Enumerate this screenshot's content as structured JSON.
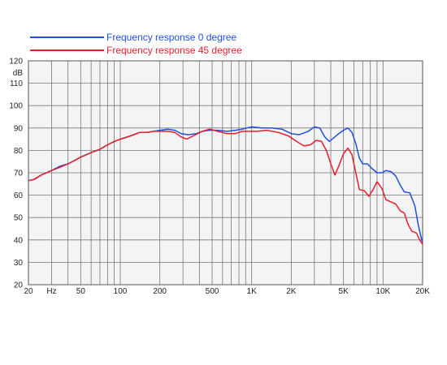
{
  "chart_data": {
    "type": "line",
    "title": "",
    "xlabel": "",
    "ylabel": "dB",
    "x_scale": "log",
    "xlim": [
      20,
      20000
    ],
    "ylim": [
      20,
      120
    ],
    "grid": true,
    "legend_position": "top-left",
    "x_ticks": [
      {
        "value": 20,
        "label": "20"
      },
      {
        "value": 30,
        "label": "Hz"
      },
      {
        "value": 50,
        "label": "50"
      },
      {
        "value": 100,
        "label": "100"
      },
      {
        "value": 200,
        "label": "200"
      },
      {
        "value": 500,
        "label": "500"
      },
      {
        "value": 1000,
        "label": "1K"
      },
      {
        "value": 2000,
        "label": "2K"
      },
      {
        "value": 5000,
        "label": "5K"
      },
      {
        "value": 10000,
        "label": "10K"
      },
      {
        "value": 20000,
        "label": "20K"
      }
    ],
    "y_ticks": [
      20,
      30,
      40,
      50,
      60,
      70,
      80,
      90,
      100,
      110,
      120
    ],
    "series": [
      {
        "name": "Frequency response 0 degree",
        "color": "#1f4fe0",
        "points": [
          [
            20,
            66.5
          ],
          [
            22,
            67
          ],
          [
            25,
            69
          ],
          [
            30,
            71
          ],
          [
            35,
            73
          ],
          [
            40,
            74
          ],
          [
            45,
            75.5
          ],
          [
            50,
            77
          ],
          [
            60,
            79
          ],
          [
            70,
            80.5
          ],
          [
            80,
            82.5
          ],
          [
            90,
            84
          ],
          [
            100,
            85
          ],
          [
            120,
            86.5
          ],
          [
            140,
            88
          ],
          [
            160,
            88
          ],
          [
            180,
            88.5
          ],
          [
            200,
            89
          ],
          [
            230,
            89.5
          ],
          [
            260,
            89
          ],
          [
            290,
            87.5
          ],
          [
            330,
            87
          ],
          [
            380,
            87.5
          ],
          [
            420,
            88.5
          ],
          [
            480,
            89
          ],
          [
            550,
            89
          ],
          [
            650,
            88.5
          ],
          [
            750,
            89
          ],
          [
            850,
            89.5
          ],
          [
            1000,
            90.5
          ],
          [
            1200,
            90
          ],
          [
            1400,
            90
          ],
          [
            1700,
            89.5
          ],
          [
            2000,
            87.5
          ],
          [
            2300,
            87
          ],
          [
            2700,
            88.5
          ],
          [
            3000,
            90.5
          ],
          [
            3300,
            90
          ],
          [
            3600,
            86
          ],
          [
            3900,
            84
          ],
          [
            4200,
            85.5
          ],
          [
            4600,
            87.5
          ],
          [
            5000,
            89
          ],
          [
            5400,
            90
          ],
          [
            5800,
            88
          ],
          [
            6200,
            83
          ],
          [
            6600,
            76.5
          ],
          [
            7000,
            74
          ],
          [
            7600,
            74
          ],
          [
            8200,
            72
          ],
          [
            9000,
            70
          ],
          [
            9800,
            70
          ],
          [
            10500,
            71
          ],
          [
            11500,
            70.5
          ],
          [
            12500,
            68.5
          ],
          [
            13500,
            64.5
          ],
          [
            14500,
            61.5
          ],
          [
            16000,
            61
          ],
          [
            17500,
            55
          ],
          [
            18500,
            47
          ],
          [
            19500,
            41
          ],
          [
            20000,
            39
          ]
        ]
      },
      {
        "name": "Frequency response 45 degree",
        "color": "#e51e2a",
        "points": [
          [
            20,
            66.5
          ],
          [
            22,
            67
          ],
          [
            25,
            69
          ],
          [
            30,
            71
          ],
          [
            35,
            72.5
          ],
          [
            40,
            74
          ],
          [
            45,
            75.5
          ],
          [
            50,
            77
          ],
          [
            60,
            79
          ],
          [
            70,
            80.5
          ],
          [
            80,
            82.5
          ],
          [
            90,
            84
          ],
          [
            100,
            85
          ],
          [
            120,
            86.5
          ],
          [
            140,
            88
          ],
          [
            160,
            88
          ],
          [
            180,
            88.5
          ],
          [
            200,
            88.5
          ],
          [
            230,
            88.5
          ],
          [
            260,
            88
          ],
          [
            290,
            86
          ],
          [
            320,
            85
          ],
          [
            360,
            86.5
          ],
          [
            420,
            88.5
          ],
          [
            480,
            89.5
          ],
          [
            550,
            88.5
          ],
          [
            650,
            87.5
          ],
          [
            750,
            87.5
          ],
          [
            850,
            88.5
          ],
          [
            950,
            88.5
          ],
          [
            1100,
            88.5
          ],
          [
            1300,
            89
          ],
          [
            1600,
            88
          ],
          [
            1900,
            86.5
          ],
          [
            2200,
            84
          ],
          [
            2500,
            82
          ],
          [
            2800,
            82.5
          ],
          [
            3100,
            84.5
          ],
          [
            3400,
            84
          ],
          [
            3700,
            80
          ],
          [
            4000,
            74
          ],
          [
            4300,
            69
          ],
          [
            4600,
            73
          ],
          [
            5000,
            78.5
          ],
          [
            5400,
            81
          ],
          [
            5800,
            78
          ],
          [
            6200,
            70
          ],
          [
            6600,
            62.5
          ],
          [
            7200,
            62
          ],
          [
            7800,
            59.5
          ],
          [
            8400,
            62.5
          ],
          [
            9000,
            66
          ],
          [
            9800,
            63
          ],
          [
            10500,
            58
          ],
          [
            11500,
            57
          ],
          [
            12500,
            56
          ],
          [
            13500,
            53
          ],
          [
            14500,
            52
          ],
          [
            15500,
            47
          ],
          [
            16500,
            44
          ],
          [
            18000,
            43
          ],
          [
            19000,
            40
          ],
          [
            20000,
            38
          ]
        ]
      }
    ]
  }
}
